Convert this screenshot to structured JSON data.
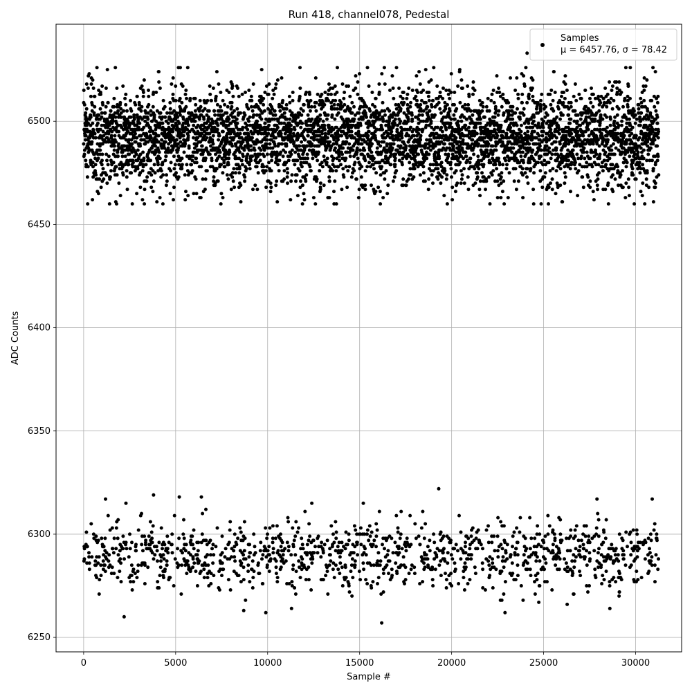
{
  "chart_data": {
    "type": "scatter",
    "title": "Run 418, channel078, Pedestal",
    "xlabel": "Sample #",
    "ylabel": "ADC Counts",
    "xlim": [
      -1500,
      32500
    ],
    "ylim": [
      6243,
      6547
    ],
    "xticks": [
      0,
      5000,
      10000,
      15000,
      20000,
      25000,
      30000
    ],
    "yticks": [
      6250,
      6300,
      6350,
      6400,
      6450,
      6500
    ],
    "grid": true,
    "marker_color": "#000000",
    "legend": {
      "placement": "top-right",
      "entries": [
        "Samples",
        "μ = 6457.76, σ = 78.42"
      ]
    },
    "series": [
      {
        "name": "Samples",
        "x_range": [
          0,
          31250
        ],
        "sample_count": 31250,
        "clusters": [
          {
            "fraction": 0.8,
            "center": 6492,
            "spread": 12,
            "min": 6460,
            "max": 6526
          },
          {
            "fraction": 0.2,
            "center": 6290,
            "spread": 8,
            "min": 6257,
            "max": 6322
          }
        ],
        "outliers": [
          {
            "x": 24100,
            "y": 6533
          },
          {
            "x": 3300,
            "y": 6460
          },
          {
            "x": 26000,
            "y": 6461
          },
          {
            "x": 19300,
            "y": 6322
          },
          {
            "x": 3800,
            "y": 6319
          },
          {
            "x": 5200,
            "y": 6318
          },
          {
            "x": 6400,
            "y": 6318
          },
          {
            "x": 30900,
            "y": 6317
          },
          {
            "x": 27900,
            "y": 6317
          },
          {
            "x": 2300,
            "y": 6315
          },
          {
            "x": 15200,
            "y": 6315
          },
          {
            "x": 12400,
            "y": 6315
          },
          {
            "x": 2200,
            "y": 6260
          },
          {
            "x": 16200,
            "y": 6257
          },
          {
            "x": 22900,
            "y": 6262
          },
          {
            "x": 9900,
            "y": 6262
          },
          {
            "x": 8700,
            "y": 6263
          },
          {
            "x": 28600,
            "y": 6264
          },
          {
            "x": 11300,
            "y": 6264
          }
        ]
      }
    ]
  }
}
